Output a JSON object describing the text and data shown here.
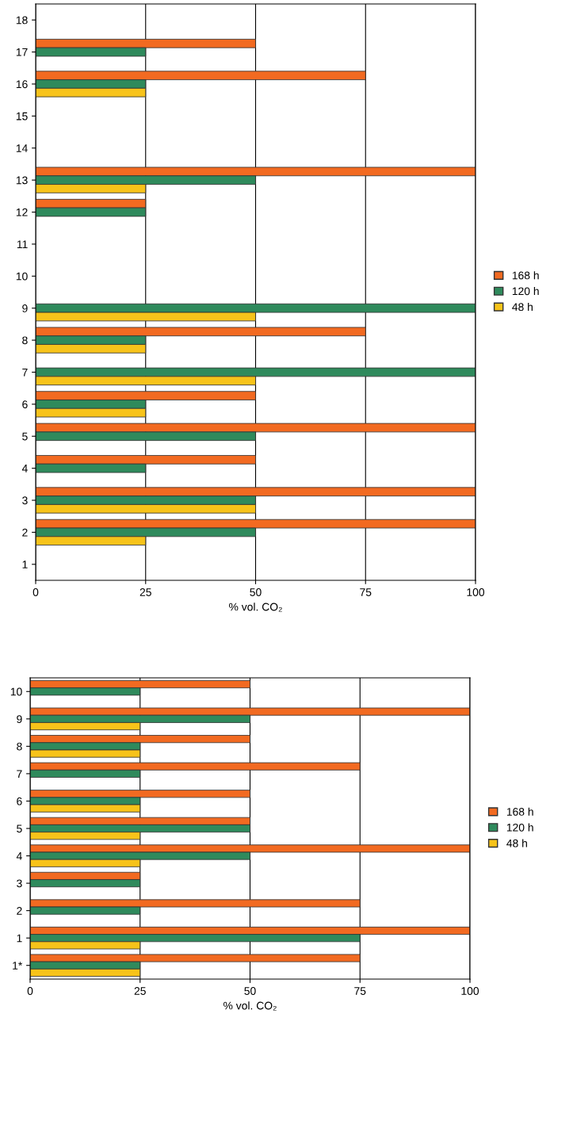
{
  "chart_data": [
    {
      "type": "bar",
      "orientation": "horizontal",
      "xlabel": "% vol. CO₂",
      "categories": [
        "18",
        "17",
        "16",
        "15",
        "14",
        "13",
        "12",
        "11",
        "10",
        "9",
        "8",
        "7",
        "6",
        "5",
        "4",
        "3",
        "2",
        "1"
      ],
      "xlim": [
        0,
        100
      ],
      "xticks": [
        0,
        25,
        50,
        75,
        100
      ],
      "grid": "x",
      "legend": "right",
      "series": [
        {
          "name": "168 h",
          "color": "#f26a21",
          "values": [
            0,
            50,
            75,
            0,
            0,
            100,
            25,
            0,
            0,
            0,
            75,
            0,
            50,
            100,
            50,
            100,
            100,
            0
          ]
        },
        {
          "name": "120 h",
          "color": "#2f8a5c",
          "values": [
            0,
            25,
            25,
            0,
            0,
            50,
            25,
            0,
            0,
            100,
            25,
            100,
            25,
            50,
            25,
            50,
            50,
            0
          ]
        },
        {
          "name": "48 h",
          "color": "#f7c31a",
          "values": [
            0,
            0,
            25,
            0,
            0,
            25,
            0,
            0,
            0,
            50,
            25,
            50,
            25,
            0,
            0,
            50,
            25,
            0
          ]
        }
      ]
    },
    {
      "type": "bar",
      "orientation": "horizontal",
      "xlabel": "% vol. CO₂",
      "categories": [
        "10",
        "9",
        "8",
        "7",
        "6",
        "5",
        "4",
        "3",
        "2",
        "1",
        "1*"
      ],
      "xlim": [
        0,
        100
      ],
      "xticks": [
        0,
        25,
        50,
        75,
        100
      ],
      "grid": "x",
      "legend": "right",
      "series": [
        {
          "name": "168 h",
          "color": "#f26a21",
          "values": [
            50,
            100,
            50,
            75,
            50,
            50,
            100,
            25,
            75,
            100,
            75
          ]
        },
        {
          "name": "120 h",
          "color": "#2f8a5c",
          "values": [
            25,
            50,
            25,
            25,
            25,
            50,
            50,
            25,
            25,
            75,
            25
          ]
        },
        {
          "name": "48 h",
          "color": "#f7c31a",
          "values": [
            0,
            25,
            25,
            0,
            25,
            25,
            25,
            0,
            0,
            25,
            25
          ]
        }
      ]
    }
  ]
}
